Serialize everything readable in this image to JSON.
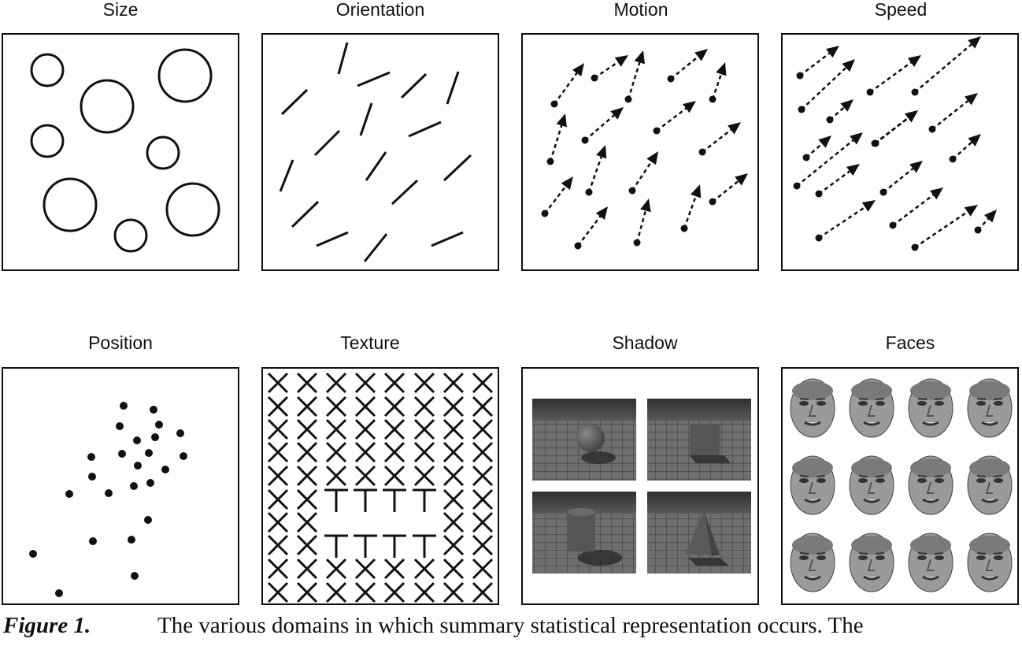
{
  "panels": [
    {
      "key": "size",
      "title": "Size"
    },
    {
      "key": "orientation",
      "title": "Orientation"
    },
    {
      "key": "motion",
      "title": "Motion"
    },
    {
      "key": "speed",
      "title": "Speed"
    },
    {
      "key": "position",
      "title": "Position"
    },
    {
      "key": "texture",
      "title": "Texture"
    },
    {
      "key": "shadow",
      "title": "Shadow"
    },
    {
      "key": "faces",
      "title": "Faces"
    }
  ],
  "caption": {
    "label": "Figure 1.",
    "text": "The various domains in which summary statistical representation occurs. The"
  },
  "colors": {
    "ink": "#111111",
    "floor": "#6a6a6a",
    "sky": "#3a3a3a",
    "face": "#9a9a9a"
  }
}
